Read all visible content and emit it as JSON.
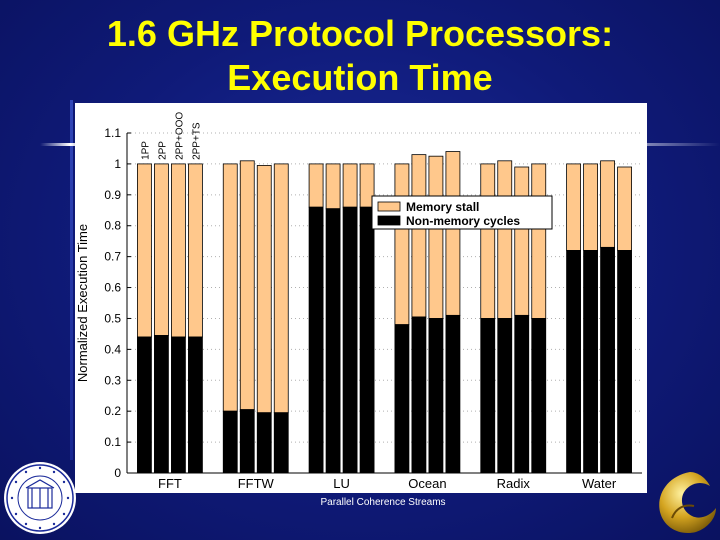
{
  "slide": {
    "title_line1": "1.6 GHz Protocol Processors:",
    "title_line2": "Execution Time",
    "footer": "Parallel Coherence Streams"
  },
  "colors": {
    "background": "#0f1a78",
    "title": "#ffff00",
    "memory_stall": "#ffc88c",
    "non_memory": "#000000"
  },
  "chart_data": {
    "type": "bar",
    "stacked": true,
    "ylabel": "Normalized Execution Time",
    "ylim": [
      0,
      1.1
    ],
    "yticks": [
      "0",
      "0.1",
      "0.2",
      "0.3",
      "0.4",
      "0.5",
      "0.6",
      "0.7",
      "0.8",
      "0.9",
      "1",
      "1.1"
    ],
    "grid": "horizontal dotted",
    "legend_position": "right, below top",
    "legend": [
      "Memory stall",
      "Non-memory cycles"
    ],
    "configs": [
      "1PP",
      "2PP",
      "2PP+OOO",
      "2PP+TS"
    ],
    "groups": [
      {
        "name": "FFT",
        "total": [
          1.0,
          1.0,
          1.0,
          1.0
        ],
        "non_memory": [
          0.44,
          0.445,
          0.44,
          0.44
        ]
      },
      {
        "name": "FFTW",
        "total": [
          1.0,
          1.01,
          0.995,
          1.0
        ],
        "non_memory": [
          0.2,
          0.205,
          0.195,
          0.195
        ]
      },
      {
        "name": "LU",
        "total": [
          1.0,
          1.0,
          1.0,
          1.0
        ],
        "non_memory": [
          0.86,
          0.855,
          0.86,
          0.86
        ]
      },
      {
        "name": "Ocean",
        "total": [
          1.0,
          1.03,
          1.025,
          1.04
        ],
        "non_memory": [
          0.48,
          0.505,
          0.5,
          0.51
        ]
      },
      {
        "name": "Radix",
        "total": [
          1.0,
          1.01,
          0.99,
          1.0
        ],
        "non_memory": [
          0.5,
          0.5,
          0.51,
          0.5
        ]
      },
      {
        "name": "Water",
        "total": [
          1.0,
          1.0,
          1.01,
          0.99
        ],
        "non_memory": [
          0.72,
          0.72,
          0.73,
          0.72
        ]
      }
    ]
  }
}
